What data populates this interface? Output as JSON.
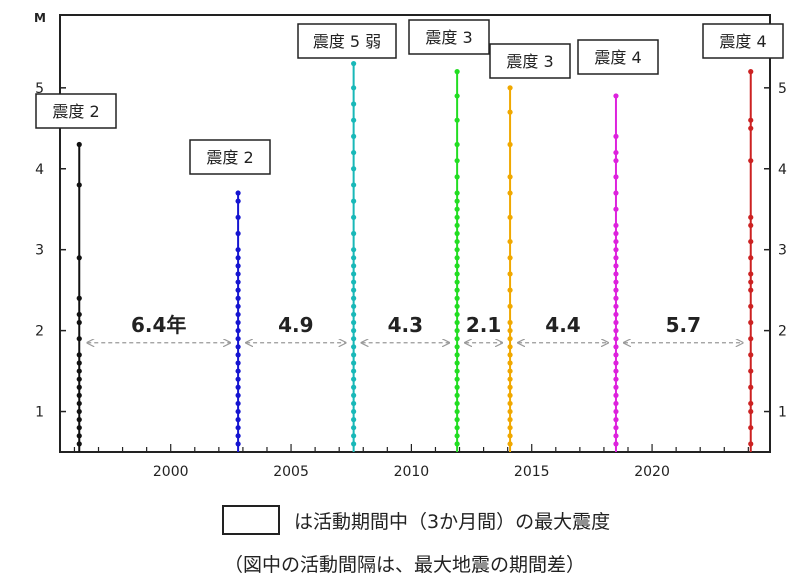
{
  "chart_data": {
    "type": "scatter",
    "ylabel": "M",
    "xlim": [
      1995.4,
      2024.9
    ],
    "ylim": [
      0.5,
      5.9
    ],
    "xticks": [
      2000,
      2005,
      2010,
      2015,
      2020
    ],
    "yticks": [
      1,
      2,
      3,
      4,
      5
    ],
    "grid": false,
    "series": [
      {
        "color": "#111111",
        "x": 1996.2,
        "values": [
          0.6,
          0.7,
          0.8,
          0.9,
          1.0,
          1.1,
          1.2,
          1.3,
          1.4,
          1.5,
          1.6,
          1.7,
          1.9,
          2.1,
          2.2,
          2.4,
          2.9,
          3.8,
          4.3
        ],
        "max_label": "震度 2"
      },
      {
        "color": "#1515d0",
        "x": 2002.8,
        "values": [
          0.6,
          0.7,
          0.8,
          0.9,
          1.0,
          1.1,
          1.2,
          1.3,
          1.4,
          1.5,
          1.6,
          1.7,
          1.8,
          1.9,
          2.0,
          2.1,
          2.2,
          2.3,
          2.4,
          2.5,
          2.6,
          2.7,
          2.8,
          2.9,
          3.0,
          3.2,
          3.4,
          3.6,
          3.7
        ],
        "max_label": "震度 2"
      },
      {
        "color": "#19b8b8",
        "x": 2007.6,
        "values": [
          0.6,
          0.7,
          0.8,
          0.9,
          1.0,
          1.1,
          1.2,
          1.3,
          1.4,
          1.5,
          1.6,
          1.7,
          1.8,
          1.9,
          2.0,
          2.1,
          2.2,
          2.3,
          2.4,
          2.5,
          2.6,
          2.7,
          2.8,
          2.9,
          3.0,
          3.2,
          3.4,
          3.6,
          3.8,
          4.0,
          4.2,
          4.4,
          4.6,
          4.8,
          5.0,
          5.3
        ],
        "max_label": "震度 5 弱"
      },
      {
        "color": "#22dd22",
        "x": 2011.9,
        "values": [
          0.6,
          0.7,
          0.8,
          0.9,
          1.0,
          1.1,
          1.2,
          1.3,
          1.4,
          1.5,
          1.6,
          1.7,
          1.8,
          1.9,
          2.0,
          2.1,
          2.2,
          2.3,
          2.4,
          2.5,
          2.6,
          2.7,
          2.8,
          2.9,
          3.0,
          3.1,
          3.2,
          3.3,
          3.4,
          3.5,
          3.6,
          3.7,
          3.9,
          4.1,
          4.3,
          4.6,
          4.9,
          5.2
        ],
        "max_label": "震度 3"
      },
      {
        "color": "#f0a800",
        "x": 2014.1,
        "values": [
          0.6,
          0.7,
          0.8,
          0.9,
          1.0,
          1.1,
          1.2,
          1.3,
          1.4,
          1.5,
          1.6,
          1.7,
          1.8,
          1.9,
          2.0,
          2.1,
          2.3,
          2.5,
          2.7,
          2.9,
          3.1,
          3.4,
          3.7,
          3.9,
          4.3,
          4.7,
          5.0
        ],
        "max_label": "震度 3"
      },
      {
        "color": "#dd22dd",
        "x": 2018.5,
        "values": [
          0.6,
          0.7,
          0.8,
          0.9,
          1.0,
          1.1,
          1.2,
          1.3,
          1.4,
          1.5,
          1.6,
          1.7,
          1.8,
          1.9,
          2.0,
          2.1,
          2.2,
          2.3,
          2.4,
          2.5,
          2.6,
          2.7,
          2.8,
          2.9,
          3.0,
          3.1,
          3.2,
          3.3,
          3.5,
          3.7,
          3.9,
          4.1,
          4.2,
          4.4,
          4.9
        ],
        "max_label": "震度 4"
      },
      {
        "color": "#cc2222",
        "x": 2024.1,
        "values": [
          0.6,
          0.8,
          1.0,
          1.1,
          1.3,
          1.5,
          1.7,
          1.9,
          2.1,
          2.3,
          2.5,
          2.6,
          2.7,
          2.9,
          3.1,
          3.3,
          3.4,
          4.1,
          4.5,
          4.6,
          5.2
        ],
        "max_label": "震度 4"
      }
    ],
    "intervals": [
      {
        "from": 1996.2,
        "to": 2002.8,
        "label": "6.4年"
      },
      {
        "from": 2002.8,
        "to": 2007.6,
        "label": "4.9"
      },
      {
        "from": 2007.6,
        "to": 2011.9,
        "label": "4.3"
      },
      {
        "from": 2011.9,
        "to": 2014.1,
        "label": "2.1"
      },
      {
        "from": 2014.1,
        "to": 2018.5,
        "label": "4.4"
      },
      {
        "from": 2018.5,
        "to": 2024.1,
        "label": "5.7"
      }
    ],
    "legend_text": "は活動期間中（3か月間）の最大震度",
    "note": "（図中の活動間隔は、最大地震の期間差）"
  }
}
